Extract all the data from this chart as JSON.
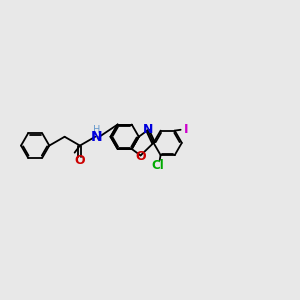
{
  "bg_color": "#e8e8e8",
  "bond_color": "#000000",
  "bond_width": 1.3,
  "dbo": 0.05,
  "colors": {
    "N": "#0000dd",
    "O": "#cc0000",
    "Cl": "#00aa00",
    "I": "#cc00cc",
    "H": "#6699cc"
  },
  "xlim": [
    0,
    10
  ],
  "ylim": [
    -2.5,
    2.5
  ]
}
